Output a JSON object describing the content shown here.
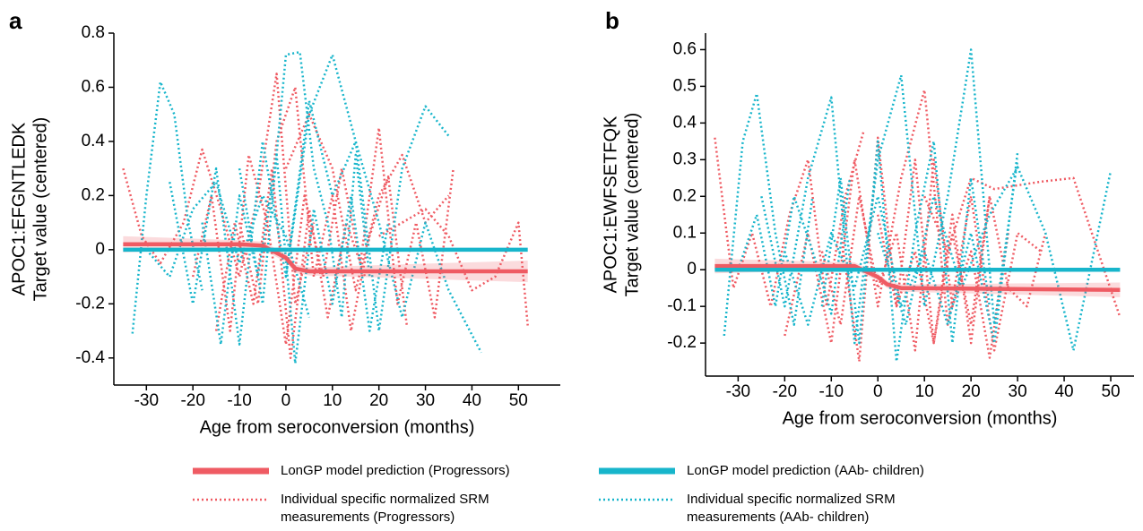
{
  "chart_data": [
    {
      "type": "line",
      "panel": "a",
      "ylabel": [
        "APOC1:EFGNTLEDK",
        "Target value (centered)"
      ],
      "xlabel": "Age from seroconversion (months)",
      "xlim": [
        -37,
        59
      ],
      "xticks": [
        -30,
        -20,
        -10,
        0,
        10,
        20,
        30,
        40,
        50
      ],
      "ylim": [
        -0.5,
        0.8
      ],
      "yticks": [
        -0.4,
        -0.2,
        0,
        0.2,
        0.4,
        0.6,
        0.8
      ],
      "series": [
        {
          "color": "#ef5b63",
          "style": "dotted",
          "x": [
            -35,
            -31,
            -27,
            -22,
            -18,
            -14,
            -10,
            -6,
            -2,
            2,
            6
          ],
          "values": [
            0.3,
            0.05,
            -0.05,
            0.1,
            0.37,
            0.15,
            -0.1,
            0.2,
            0.65,
            -0.2,
            0.1
          ]
        },
        {
          "color": "#ef5b63",
          "style": "dotted",
          "x": [
            -20,
            -16,
            -12,
            -8,
            -4,
            0,
            4,
            8,
            12,
            16,
            20,
            24,
            28,
            32,
            36
          ],
          "values": [
            -0.1,
            0.2,
            -0.3,
            0.35,
            0.1,
            -0.35,
            0.2,
            -0.1,
            0.3,
            -0.05,
            0.45,
            -0.2,
            0.1,
            -0.25,
            0.3
          ]
        },
        {
          "color": "#ef5b63",
          "style": "dotted",
          "x": [
            -10,
            -6,
            -2,
            2,
            6,
            10,
            14,
            18,
            22,
            26
          ],
          "values": [
            0.1,
            -0.2,
            0.4,
            0.6,
            -0.1,
            0.2,
            -0.3,
            0.05,
            0.27,
            -0.28
          ]
        },
        {
          "color": "#ef5b63",
          "style": "dotted",
          "x": [
            0,
            5,
            10,
            15,
            20,
            25,
            30,
            35
          ],
          "values": [
            0.3,
            0.5,
            0.3,
            -0.15,
            0.2,
            0.35,
            0.1,
            0.2
          ]
        },
        {
          "color": "#ef5b63",
          "style": "dotted",
          "x": [
            -15,
            -11,
            -7,
            -3,
            1,
            5,
            9,
            13,
            17
          ],
          "values": [
            -0.3,
            0.1,
            -0.2,
            0.3,
            -0.4,
            0.15,
            -0.25,
            0.1,
            -0.1
          ]
        },
        {
          "color": "#ef5b63",
          "style": "dotted",
          "x": [
            20,
            25,
            30,
            35,
            40,
            45,
            50,
            52
          ],
          "values": [
            0.05,
            0.1,
            0.15,
            0.05,
            -0.15,
            -0.1,
            0.1,
            -0.28
          ]
        },
        {
          "color": "#17b5cb",
          "style": "dotted",
          "x": [
            -33,
            -30,
            -27,
            -24,
            -21,
            -18
          ],
          "values": [
            -0.31,
            0.2,
            0.62,
            0.5,
            0.1,
            -0.15
          ]
        },
        {
          "color": "#17b5cb",
          "style": "dotted",
          "x": [
            -25,
            -20,
            -15,
            -10,
            -5,
            0,
            5,
            10,
            15,
            20,
            25,
            30,
            35
          ],
          "values": [
            0.25,
            -0.2,
            0.3,
            -0.35,
            0.4,
            -0.1,
            0.55,
            0.2,
            0.4,
            -0.3,
            0.3,
            0.53,
            0.42
          ]
        },
        {
          "color": "#17b5cb",
          "style": "dotted",
          "x": [
            -10,
            -5,
            0,
            3,
            6,
            9,
            12,
            15,
            18
          ],
          "values": [
            0.3,
            -0.2,
            0.72,
            0.73,
            0.3,
            0.1,
            -0.25,
            0.35,
            -0.1
          ]
        },
        {
          "color": "#17b5cb",
          "style": "dotted",
          "x": [
            0,
            5,
            10,
            15,
            20,
            25,
            30,
            35,
            42
          ],
          "values": [
            -0.1,
            0.5,
            0.72,
            0.4,
            0.1,
            -0.25,
            0.1,
            -0.15,
            -0.38
          ]
        },
        {
          "color": "#17b5cb",
          "style": "dotted",
          "x": [
            -18,
            -14,
            -10,
            -6,
            -2,
            2,
            6,
            10,
            14,
            18,
            22
          ],
          "values": [
            0.1,
            -0.35,
            0.2,
            -0.1,
            0.35,
            -0.42,
            0.15,
            -0.2,
            0.2,
            -0.3,
            0.1
          ]
        },
        {
          "color": "#17b5cb",
          "style": "dotted",
          "x": [
            -30,
            -25,
            -20,
            -15,
            -10,
            -5,
            0,
            5
          ],
          "values": [
            0,
            -0.1,
            0.15,
            0.25,
            -0.05,
            0.2,
            0.05,
            -0.25
          ]
        },
        {
          "color": "#ef5b63",
          "style": "solid",
          "x": [
            -35,
            -10,
            -5,
            0,
            2,
            5,
            52
          ],
          "values": [
            0.02,
            0.02,
            0.015,
            -0.03,
            -0.07,
            -0.08,
            -0.08
          ],
          "lower": [
            -0.01,
            0.005,
            0,
            -0.045,
            -0.085,
            -0.095,
            -0.12
          ],
          "upper": [
            0.05,
            0.035,
            0.03,
            -0.015,
            -0.055,
            -0.065,
            -0.04
          ]
        },
        {
          "color": "#17b5cb",
          "style": "solid",
          "x": [
            -35,
            52
          ],
          "values": [
            0,
            0
          ]
        }
      ]
    },
    {
      "type": "line",
      "panel": "b",
      "ylabel": [
        "APOC1:EWFSETFQK",
        "Target value (centered)"
      ],
      "xlabel": "Age from seroconversion (months)",
      "xlim": [
        -37,
        55
      ],
      "xticks": [
        -30,
        -20,
        -10,
        0,
        10,
        20,
        30,
        40,
        50
      ],
      "ylim": [
        -0.29,
        0.645
      ],
      "yticks": [
        -0.2,
        -0.1,
        0,
        0.1,
        0.2,
        0.3,
        0.4,
        0.5,
        0.6
      ],
      "series": [
        {
          "color": "#ef5b63",
          "style": "dotted",
          "x": [
            -35,
            -31,
            -27,
            -23,
            -19,
            -15,
            -11,
            -7,
            -3
          ],
          "values": [
            0.36,
            -0.05,
            0.1,
            -0.1,
            0.15,
            0.3,
            -0.1,
            0.2,
            0.38
          ]
        },
        {
          "color": "#ef5b63",
          "style": "dotted",
          "x": [
            -20,
            -15,
            -10,
            -5,
            0,
            5,
            10,
            15,
            20,
            25,
            30,
            35
          ],
          "values": [
            -0.18,
            0.1,
            -0.2,
            0.3,
            -0.1,
            0.25,
            0.49,
            -0.15,
            0.2,
            -0.22,
            0.1,
            0.05
          ]
        },
        {
          "color": "#ef5b63",
          "style": "dotted",
          "x": [
            -8,
            -4,
            0,
            4,
            8,
            12,
            16,
            20,
            24
          ],
          "values": [
            0.1,
            -0.25,
            0.36,
            -0.1,
            0.3,
            -0.2,
            0.15,
            -0.2,
            0.2
          ]
        },
        {
          "color": "#ef5b63",
          "style": "dotted",
          "x": [
            10,
            15,
            20,
            25,
            30,
            35,
            42,
            52
          ],
          "values": [
            0.2,
            0.05,
            0.25,
            0.22,
            0.23,
            0.24,
            0.25,
            -0.13
          ]
        },
        {
          "color": "#ef5b63",
          "style": "dotted",
          "x": [
            -12,
            -8,
            -4,
            0,
            4,
            8,
            12,
            16,
            20,
            24,
            28
          ],
          "values": [
            0.05,
            -0.15,
            0.2,
            -0.05,
            0.1,
            -0.22,
            0.3,
            -0.1,
            0.05,
            -0.24,
            0.1
          ]
        },
        {
          "color": "#ef5b63",
          "style": "dotted",
          "x": [
            0,
            4,
            8,
            12,
            16,
            20,
            24,
            28,
            32,
            36
          ],
          "values": [
            0.15,
            -0.1,
            0.05,
            -0.2,
            0.1,
            -0.15,
            0.2,
            -0.05,
            -0.1,
            0.1
          ]
        },
        {
          "color": "#17b5cb",
          "style": "dotted",
          "x": [
            -33,
            -29,
            -26,
            -22,
            -18,
            -14
          ],
          "values": [
            -0.18,
            0.35,
            0.48,
            0.1,
            -0.15,
            0.2
          ]
        },
        {
          "color": "#17b5cb",
          "style": "dotted",
          "x": [
            -25,
            -20,
            -15,
            -10,
            -5,
            0,
            5,
            10,
            15,
            20,
            25,
            30
          ],
          "values": [
            0.2,
            -0.1,
            0.25,
            0.47,
            -0.2,
            0.3,
            0.53,
            -0.1,
            0.2,
            0.6,
            -0.15,
            0.3
          ]
        },
        {
          "color": "#17b5cb",
          "style": "dotted",
          "x": [
            -12,
            -8,
            -4,
            0,
            4,
            8,
            12,
            16,
            20,
            24
          ],
          "values": [
            -0.1,
            0.25,
            -0.2,
            0.35,
            -0.25,
            0.1,
            0.35,
            -0.2,
            0.25,
            -0.1
          ]
        },
        {
          "color": "#17b5cb",
          "style": "dotted",
          "x": [
            0,
            6,
            12,
            18,
            24,
            30,
            36,
            42,
            50
          ],
          "values": [
            0.1,
            -0.15,
            0.2,
            -0.05,
            0.15,
            0.28,
            0.1,
            -0.22,
            0.27
          ]
        },
        {
          "color": "#17b5cb",
          "style": "dotted",
          "x": [
            -20,
            -15,
            -10,
            -5,
            0,
            5,
            10,
            15,
            20,
            25,
            30
          ],
          "values": [
            0.05,
            -0.15,
            0.1,
            -0.05,
            0.2,
            -0.1,
            0.05,
            -0.15,
            0.1,
            -0.2,
            0.32
          ]
        },
        {
          "color": "#17b5cb",
          "style": "dotted",
          "x": [
            -30,
            -26,
            -22,
            -18,
            -14,
            -10,
            -6
          ],
          "values": [
            0,
            0.15,
            -0.1,
            0.2,
            0.05,
            -0.12,
            0.25
          ]
        },
        {
          "color": "#ef5b63",
          "style": "solid",
          "x": [
            -35,
            -5,
            0,
            2,
            5,
            52
          ],
          "values": [
            0.01,
            0.01,
            -0.02,
            -0.04,
            -0.05,
            -0.055
          ],
          "lower": [
            -0.01,
            0,
            -0.03,
            -0.05,
            -0.06,
            -0.075
          ],
          "upper": [
            0.03,
            0.02,
            -0.01,
            -0.03,
            -0.04,
            -0.035
          ]
        },
        {
          "color": "#17b5cb",
          "style": "solid",
          "x": [
            -35,
            52
          ],
          "values": [
            0,
            0
          ]
        }
      ]
    }
  ],
  "legend": [
    {
      "name": "LonGP model prediction (Progressors)",
      "color": "#ef5b63",
      "style": "solid"
    },
    {
      "name": "Individual specific normalized SRM measurements (Progressors)",
      "color": "#ef5b63",
      "style": "dotted"
    },
    {
      "name": "LonGP model prediction (AAb- children)",
      "color": "#17b5cb",
      "style": "solid"
    },
    {
      "name": "Individual specific normalized SRM measurements (AAb- children)",
      "color": "#17b5cb",
      "style": "dotted"
    }
  ]
}
